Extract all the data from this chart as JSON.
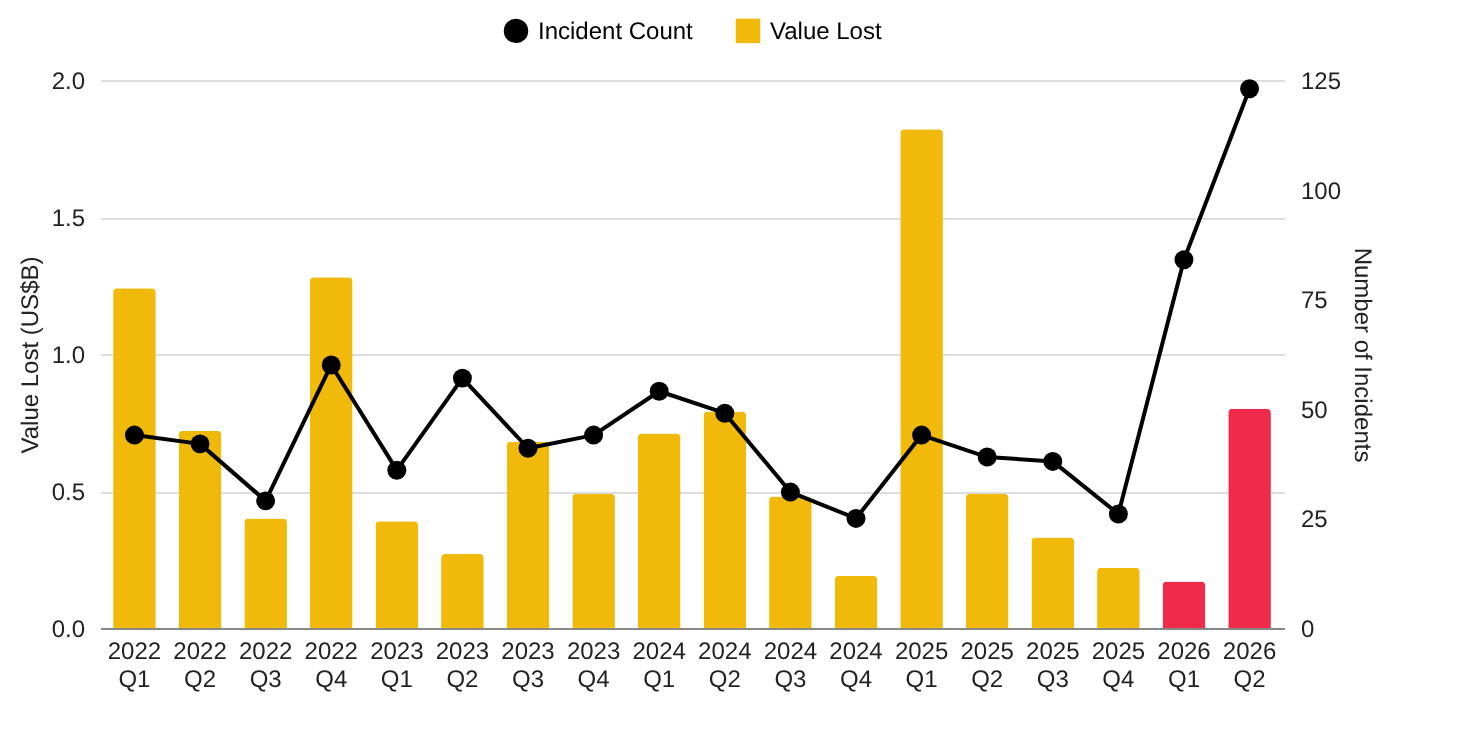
{
  "chart_data": {
    "type": "bar",
    "xlabel": null,
    "ylabel": "Value Lost (US$B)",
    "y2label": "Number of Incidents",
    "categories": [
      "2022 Q1",
      "2022 Q2",
      "2022 Q3",
      "2022 Q4",
      "2023 Q1",
      "2023 Q2",
      "2023 Q3",
      "2023 Q4",
      "2024 Q1",
      "2024 Q2",
      "2024 Q3",
      "2024 Q4",
      "2025 Q1",
      "2025 Q2",
      "2025 Q3",
      "2025 Q4",
      "2026 Q1",
      "2026 Q2"
    ],
    "series": [
      {
        "name": "Value Lost",
        "color": "#f1b90a",
        "colors": [
          "#f1b90a",
          "#f1b90a",
          "#f1b90a",
          "#f1b90a",
          "#f1b90a",
          "#f1b90a",
          "#f1b90a",
          "#f1b90a",
          "#f1b90a",
          "#f1b90a",
          "#f1b90a",
          "#f1b90a",
          "#f1b90a",
          "#f1b90a",
          "#f1b90a",
          "#f1b90a",
          "#ef2a4a",
          "#ef2a4a"
        ],
        "values": [
          1.24,
          0.72,
          0.4,
          1.28,
          0.39,
          0.27,
          0.68,
          0.49,
          0.71,
          0.79,
          0.48,
          0.19,
          1.82,
          0.49,
          0.33,
          0.22,
          0.17,
          0.8
        ]
      },
      {
        "name": "Incident Count",
        "type": "line",
        "axis": "y2",
        "color": "#000000",
        "marker": "circle",
        "values": [
          44,
          42,
          29,
          60,
          36,
          57,
          41,
          44,
          54,
          49,
          31,
          25,
          44,
          39,
          38,
          26,
          84,
          123
        ]
      }
    ],
    "ylim": [
      0,
      2
    ],
    "yticks": [
      {
        "value": 0,
        "label": "0.0"
      },
      0.5,
      {
        "value": 1,
        "label": "1.0"
      },
      1.5,
      {
        "value": 2,
        "label": "2.0"
      }
    ],
    "y2lim": [
      0,
      125
    ],
    "y2ticks": [
      0,
      25,
      50,
      75,
      100,
      125
    ],
    "grid": "y",
    "legend": "top"
  }
}
